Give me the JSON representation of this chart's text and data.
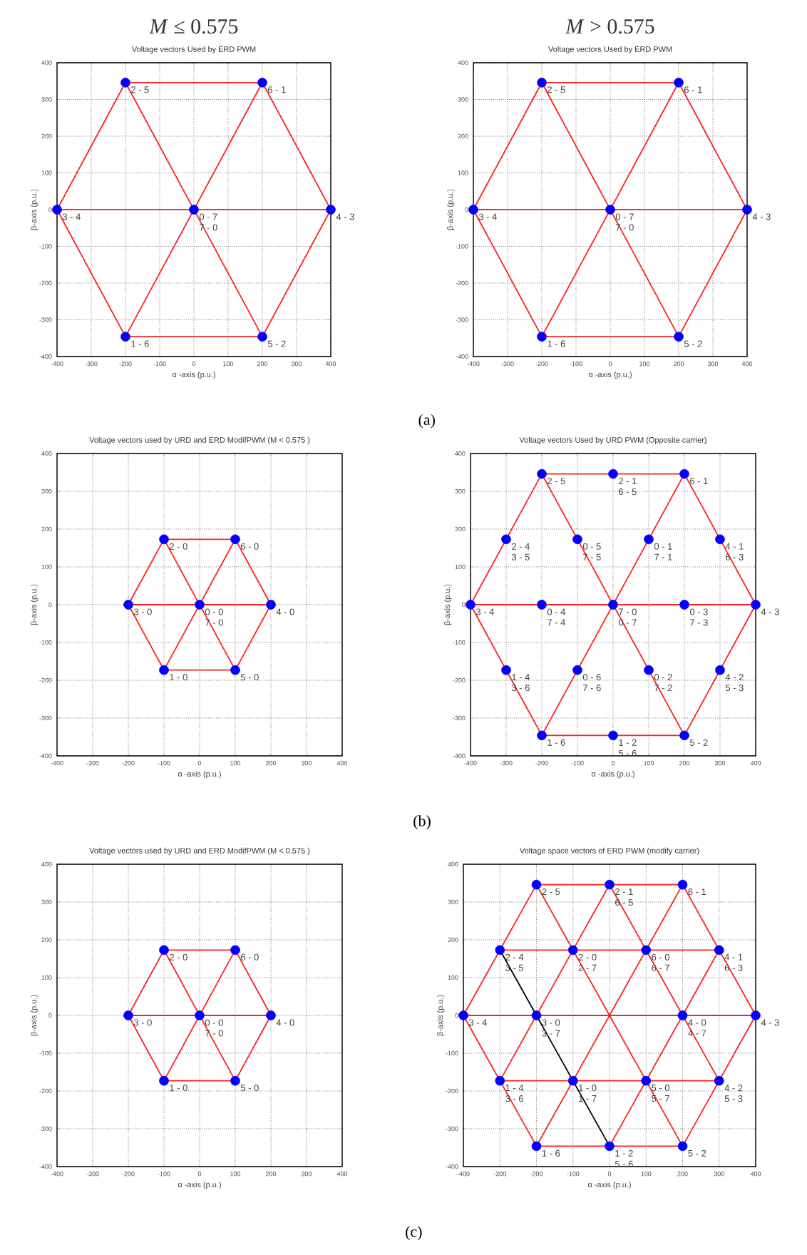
{
  "chart_data": [
    {
      "type": "scatter",
      "title": "*M* ≤ 0.575",
      "subtitle": "Voltage vectors Used by ERD PWM",
      "xlabel": "α -axis (p.u.)",
      "ylabel": "β-axis (p.u.)",
      "xlim": [
        -400,
        400
      ],
      "ylim": [
        -400,
        400
      ],
      "xticks": [
        -400,
        -300,
        -200,
        -100,
        0,
        100,
        200,
        300,
        400
      ],
      "yticks": [
        -400,
        -300,
        -200,
        -100,
        0,
        100,
        200,
        300,
        400
      ],
      "grid": true,
      "series": [
        {
          "type": "line",
          "color": "#ff2020",
          "x": [
            -400,
            -200,
            200,
            400
          ],
          "values": [
            0,
            346,
            346,
            0
          ]
        },
        {
          "type": "line",
          "color": "#ff2020",
          "x": [
            -400,
            -200,
            200,
            400
          ],
          "values": [
            0,
            -346,
            -346,
            0
          ]
        },
        {
          "type": "line",
          "color": "#ff2020",
          "x": [
            -400,
            400
          ],
          "values": [
            0,
            0
          ]
        },
        {
          "type": "line",
          "color": "#ff2020",
          "x": [
            -200,
            200
          ],
          "values": [
            346,
            -346
          ]
        },
        {
          "type": "line",
          "color": "#ff2020",
          "x": [
            -200,
            200
          ],
          "values": [
            -346,
            346
          ]
        },
        {
          "marker": "circle",
          "color": "#0000ff",
          "x": [
            -400,
            -200,
            200,
            400,
            200,
            -200,
            0
          ],
          "values": [
            0,
            346,
            346,
            0,
            -346,
            -346,
            0
          ]
        }
      ],
      "annotations": [
        {
          "text": "2 - 5",
          "x": -200,
          "y": 346
        },
        {
          "text": "6 - 1",
          "x": 200,
          "y": 346
        },
        {
          "text": "3 - 4",
          "x": -400,
          "y": 0
        },
        {
          "text": "0 - 7",
          "x": 0,
          "y": 0
        },
        {
          "text": "7 - 0",
          "x": 0,
          "y": 0
        },
        {
          "text": "4 - 3",
          "x": 400,
          "y": 0
        },
        {
          "text": "1 - 6",
          "x": -200,
          "y": -346
        },
        {
          "text": "5 - 2",
          "x": 200,
          "y": -346
        }
      ]
    },
    {
      "type": "scatter",
      "title": "*M* > 0.575",
      "subtitle": "Voltage vectors Used by ERD PWM",
      "xlabel": "α -axis (p.u.)",
      "ylabel": "β-axis (p.u.)",
      "xlim": [
        -400,
        400
      ],
      "ylim": [
        -400,
        400
      ],
      "xticks": [
        -400,
        -300,
        -200,
        -100,
        0,
        100,
        200,
        300,
        400
      ],
      "yticks": [
        -400,
        -300,
        -200,
        -100,
        0,
        100,
        200,
        300,
        400
      ],
      "grid": true,
      "series": [
        {
          "type": "line",
          "color": "#ff2020",
          "x": [
            -400,
            -200,
            200,
            400
          ],
          "values": [
            0,
            346,
            346,
            0
          ]
        },
        {
          "type": "line",
          "color": "#ff2020",
          "x": [
            -400,
            -200,
            200,
            400
          ],
          "values": [
            0,
            -346,
            -346,
            0
          ]
        },
        {
          "type": "line",
          "color": "#ff2020",
          "x": [
            -400,
            400
          ],
          "values": [
            0,
            0
          ]
        },
        {
          "type": "line",
          "color": "#ff2020",
          "x": [
            -200,
            200
          ],
          "values": [
            346,
            -346
          ]
        },
        {
          "type": "line",
          "color": "#ff2020",
          "x": [
            -200,
            200
          ],
          "values": [
            -346,
            346
          ]
        },
        {
          "marker": "circle",
          "color": "#0000ff",
          "x": [
            -400,
            -200,
            200,
            400,
            200,
            -200,
            0
          ],
          "values": [
            0,
            346,
            346,
            0,
            -346,
            -346,
            0
          ]
        }
      ],
      "annotations": [
        {
          "text": "2 - 5",
          "x": -200,
          "y": 346
        },
        {
          "text": "6 - 1",
          "x": 200,
          "y": 346
        },
        {
          "text": "3 - 4",
          "x": -400,
          "y": 0
        },
        {
          "text": "0 - 7",
          "x": 0,
          "y": 0
        },
        {
          "text": "7 - 0",
          "x": 0,
          "y": 0
        },
        {
          "text": "4 - 3",
          "x": 400,
          "y": 0
        },
        {
          "text": "1 - 6",
          "x": -200,
          "y": -346
        },
        {
          "text": "5 - 2",
          "x": 200,
          "y": -346
        },
        "(a)"
      ]
    },
    {
      "type": "scatter",
      "title": "Voltage vectors used by URD and ERD ModifPWM (M < 0.575 )",
      "xlabel": "α -axis (p.u.)",
      "ylabel": "β-axis (p.u.)",
      "xlim": [
        -400,
        400
      ],
      "ylim": [
        -400,
        400
      ],
      "xticks": [
        -400,
        -300,
        -200,
        -100,
        0,
        100,
        200,
        300,
        400
      ],
      "yticks": [
        -400,
        -300,
        -200,
        -100,
        0,
        100,
        200,
        300,
        400
      ],
      "grid": true,
      "series": [
        {
          "type": "line",
          "color": "#ff2020",
          "x": [
            -200,
            -100,
            100,
            200
          ],
          "values": [
            0,
            173,
            173,
            0
          ]
        },
        {
          "type": "line",
          "color": "#ff2020",
          "x": [
            -200,
            -100,
            100,
            200
          ],
          "values": [
            0,
            -173,
            -173,
            0
          ]
        },
        {
          "type": "line",
          "color": "#ff2020",
          "x": [
            -200,
            200
          ],
          "values": [
            0,
            0
          ]
        },
        {
          "type": "line",
          "color": "#ff2020",
          "x": [
            -100,
            100
          ],
          "values": [
            173,
            -173
          ]
        },
        {
          "type": "line",
          "color": "#ff2020",
          "x": [
            -100,
            100
          ],
          "values": [
            -173,
            173
          ]
        },
        {
          "marker": "circle",
          "color": "#0000ff",
          "x": [
            -200,
            -100,
            100,
            200,
            100,
            -100,
            0
          ],
          "values": [
            0,
            173,
            173,
            0,
            -173,
            -173,
            0
          ]
        }
      ],
      "annotations": [
        {
          "text": "2 - 0",
          "x": -100,
          "y": 173
        },
        {
          "text": "6 - 0",
          "x": 100,
          "y": 173
        },
        {
          "text": "3 - 0",
          "x": -200,
          "y": 0
        },
        {
          "text": "0 - 0",
          "x": 0,
          "y": 0
        },
        {
          "text": "7 - 0",
          "x": 0,
          "y": 0
        },
        {
          "text": "4 - 0",
          "x": 200,
          "y": 0
        },
        {
          "text": "1 - 0",
          "x": -100,
          "y": -173
        },
        {
          "text": "5 - 0",
          "x": 100,
          "y": -173
        }
      ]
    },
    {
      "type": "scatter",
      "title": "Voltage vectors Used by URD PWM (Opposite carrier)",
      "xlabel": "α -axis (p.u.)",
      "ylabel": "β-axis (p.u.)",
      "xlim": [
        -400,
        400
      ],
      "ylim": [
        -400,
        400
      ],
      "xticks": [
        -400,
        -300,
        -200,
        -100,
        0,
        100,
        200,
        300,
        400
      ],
      "yticks": [
        -400,
        -300,
        -200,
        -100,
        0,
        100,
        200,
        300,
        400
      ],
      "grid": true,
      "series": [
        {
          "type": "line",
          "color": "#ff2020",
          "x": [
            -400,
            -200,
            200,
            400
          ],
          "values": [
            0,
            346,
            346,
            0
          ]
        },
        {
          "type": "line",
          "color": "#ff2020",
          "x": [
            -400,
            -200,
            200,
            400
          ],
          "values": [
            0,
            -346,
            -346,
            0
          ]
        },
        {
          "type": "line",
          "color": "#ff2020",
          "x": [
            -400,
            400
          ],
          "values": [
            0,
            0
          ]
        },
        {
          "type": "line",
          "color": "#ff2020",
          "x": [
            -200,
            200
          ],
          "values": [
            346,
            -346
          ]
        },
        {
          "type": "line",
          "color": "#ff2020",
          "x": [
            -200,
            200
          ],
          "values": [
            -346,
            346
          ]
        },
        {
          "marker": "circle",
          "color": "#0000ff",
          "x": [
            -200,
            0,
            200,
            -300,
            -100,
            100,
            300,
            -400,
            -200,
            0,
            200,
            400,
            -300,
            -100,
            100,
            300,
            -200,
            0,
            200
          ],
          "values": [
            346,
            346,
            346,
            173,
            173,
            173,
            173,
            0,
            0,
            0,
            0,
            0,
            -173,
            -173,
            -173,
            -173,
            -346,
            -346,
            -346
          ]
        }
      ],
      "annotations": [
        {
          "text": "2 - 5",
          "x": -200,
          "y": 346
        },
        {
          "text": "2 - 1",
          "x": 0,
          "y": 346
        },
        {
          "text": "6 - 5",
          "x": 0,
          "y": 346
        },
        {
          "text": "6 - 1",
          "x": 200,
          "y": 346
        },
        {
          "text": "2 - 4",
          "x": -300,
          "y": 173
        },
        {
          "text": "3 - 5",
          "x": -300,
          "y": 173
        },
        {
          "text": "0 - 5",
          "x": -100,
          "y": 173
        },
        {
          "text": "7 - 5",
          "x": -100,
          "y": 173
        },
        {
          "text": "0 - 1",
          "x": 100,
          "y": 173
        },
        {
          "text": "7 - 1",
          "x": 100,
          "y": 173
        },
        {
          "text": "4 - 1",
          "x": 300,
          "y": 173
        },
        {
          "text": "6 - 3",
          "x": 300,
          "y": 173
        },
        {
          "text": "3 - 4",
          "x": -400,
          "y": 0
        },
        {
          "text": "0 - 4",
          "x": -200,
          "y": 0
        },
        {
          "text": "7 - 4",
          "x": -200,
          "y": 0
        },
        {
          "text": "7 - 0",
          "x": 0,
          "y": 0
        },
        {
          "text": "0 - 7",
          "x": 0,
          "y": 0
        },
        {
          "text": "0 - 3",
          "x": 200,
          "y": 0
        },
        {
          "text": "7 - 3",
          "x": 200,
          "y": 0
        },
        {
          "text": "4 - 3",
          "x": 400,
          "y": 0
        },
        {
          "text": "1 - 4",
          "x": -300,
          "y": -173
        },
        {
          "text": "3 - 6",
          "x": -300,
          "y": -173
        },
        {
          "text": "0 - 6",
          "x": -100,
          "y": -173
        },
        {
          "text": "7 - 6",
          "x": -100,
          "y": -173
        },
        {
          "text": "0 - 2",
          "x": 100,
          "y": -173
        },
        {
          "text": "7 - 2",
          "x": 100,
          "y": -173
        },
        {
          "text": "4 - 2",
          "x": 300,
          "y": -173
        },
        {
          "text": "5 - 3",
          "x": 300,
          "y": -173
        },
        {
          "text": "1 - 6",
          "x": -200,
          "y": -346
        },
        {
          "text": "1 - 2",
          "x": 0,
          "y": -346
        },
        {
          "text": "5 - 6",
          "x": 0,
          "y": -346
        },
        {
          "text": "5 - 2",
          "x": 200,
          "y": -346
        },
        "(b)"
      ]
    },
    {
      "type": "scatter",
      "title": "Voltage vectors used by URD and ERD ModifPWM (M < 0.575 )",
      "xlabel": "α -axis (p.u.)",
      "ylabel": "β-axis (p.u.)",
      "xlim": [
        -400,
        400
      ],
      "ylim": [
        -400,
        400
      ],
      "xticks": [
        -400,
        -300,
        -200,
        -100,
        0,
        100,
        200,
        300,
        400
      ],
      "yticks": [
        -400,
        -300,
        -200,
        -100,
        0,
        100,
        200,
        300,
        400
      ],
      "grid": true,
      "series": [
        {
          "type": "line",
          "color": "#ff2020",
          "x": [
            -200,
            -100,
            100,
            200
          ],
          "values": [
            0,
            173,
            173,
            0
          ]
        },
        {
          "type": "line",
          "color": "#ff2020",
          "x": [
            -200,
            -100,
            100,
            200
          ],
          "values": [
            0,
            -173,
            -173,
            0
          ]
        },
        {
          "type": "line",
          "color": "#ff2020",
          "x": [
            -200,
            200
          ],
          "values": [
            0,
            0
          ]
        },
        {
          "type": "line",
          "color": "#ff2020",
          "x": [
            -100,
            100
          ],
          "values": [
            173,
            -173
          ]
        },
        {
          "type": "line",
          "color": "#ff2020",
          "x": [
            -100,
            100
          ],
          "values": [
            -173,
            173
          ]
        },
        {
          "marker": "circle",
          "color": "#0000ff",
          "x": [
            -200,
            -100,
            100,
            200,
            100,
            -100,
            0
          ],
          "values": [
            0,
            173,
            173,
            0,
            -173,
            -173,
            0
          ]
        }
      ],
      "annotations": [
        {
          "text": "2 - 0",
          "x": -100,
          "y": 173
        },
        {
          "text": "6 - 0",
          "x": 100,
          "y": 173
        },
        {
          "text": "3 - 0",
          "x": -200,
          "y": 0
        },
        {
          "text": "0 - 0",
          "x": 0,
          "y": 0
        },
        {
          "text": "7 - 0",
          "x": 0,
          "y": 0
        },
        {
          "text": "4 - 0",
          "x": 200,
          "y": 0
        },
        {
          "text": "1 - 0",
          "x": -100,
          "y": -173
        },
        {
          "text": "5 - 0",
          "x": 100,
          "y": -173
        }
      ]
    },
    {
      "type": "scatter",
      "title": "Voltage space vectors of ERD PWM (modify carrier)",
      "xlabel": "α -axis (p.u.)",
      "ylabel": "β-axis (p.u.)",
      "xlim": [
        -400,
        400
      ],
      "ylim": [
        -400,
        400
      ],
      "xticks": [
        -400,
        -300,
        -200,
        -100,
        0,
        100,
        200,
        300,
        400
      ],
      "yticks": [
        -400,
        -300,
        -200,
        -100,
        0,
        100,
        200,
        300,
        400
      ],
      "grid": true,
      "series": [
        {
          "type": "line",
          "color": "#ff2020",
          "x": [
            -200,
            200
          ],
          "values": [
            346,
            346
          ]
        },
        {
          "type": "line",
          "color": "#ff2020",
          "x": [
            -300,
            300
          ],
          "values": [
            173,
            173
          ]
        },
        {
          "type": "line",
          "color": "#ff2020",
          "x": [
            -400,
            400
          ],
          "values": [
            0,
            0
          ]
        },
        {
          "type": "line",
          "color": "#ff2020",
          "x": [
            -300,
            300
          ],
          "values": [
            -173,
            -173
          ]
        },
        {
          "type": "line",
          "color": "#ff2020",
          "x": [
            -200,
            200
          ],
          "values": [
            -346,
            -346
          ]
        },
        {
          "type": "line",
          "color": "#ff2020",
          "x": [
            -400,
            -200
          ],
          "values": [
            0,
            346
          ]
        },
        {
          "type": "line",
          "color": "#ff2020",
          "x": [
            -300,
            0
          ],
          "values": [
            -173,
            346
          ]
        },
        {
          "type": "line",
          "color": "#ff2020",
          "x": [
            -200,
            200
          ],
          "values": [
            -346,
            346
          ]
        },
        {
          "type": "line",
          "color": "#ff2020",
          "x": [
            0,
            300
          ],
          "values": [
            -346,
            173
          ]
        },
        {
          "type": "line",
          "color": "#ff2020",
          "x": [
            200,
            400
          ],
          "values": [
            -346,
            0
          ]
        },
        {
          "type": "line",
          "color": "#ff2020",
          "x": [
            -400,
            -200
          ],
          "values": [
            0,
            -346
          ]
        },
        {
          "type": "line",
          "color": "#ff2020",
          "x": [
            -200,
            200
          ],
          "values": [
            346,
            -346
          ]
        },
        {
          "type": "line",
          "color": "#ff2020",
          "x": [
            0,
            300
          ],
          "values": [
            346,
            -173
          ]
        },
        {
          "type": "line",
          "color": "#ff2020",
          "x": [
            200,
            400
          ],
          "values": [
            346,
            0
          ]
        },
        {
          "type": "line",
          "color": "#000000",
          "x": [
            -300,
            0
          ],
          "values": [
            173,
            -346
          ]
        },
        {
          "marker": "circle",
          "color": "#0000ff",
          "x": [
            -200,
            0,
            200,
            -300,
            -100,
            100,
            300,
            -400,
            -200,
            200,
            400,
            -300,
            -100,
            100,
            300,
            -200,
            0,
            200
          ],
          "values": [
            346,
            346,
            346,
            173,
            173,
            173,
            173,
            0,
            0,
            0,
            0,
            -173,
            -173,
            -173,
            -173,
            -346,
            -346,
            -346
          ]
        }
      ],
      "annotations": [
        {
          "text": "2 - 5",
          "x": -200,
          "y": 346
        },
        {
          "text": "2 - 1",
          "x": 0,
          "y": 346
        },
        {
          "text": "6 - 5",
          "x": 0,
          "y": 346
        },
        {
          "text": "6 - 1",
          "x": 200,
          "y": 346
        },
        {
          "text": "2 - 4",
          "x": -300,
          "y": 173
        },
        {
          "text": "3 - 5",
          "x": -300,
          "y": 173
        },
        {
          "text": "2 - 0",
          "x": -100,
          "y": 173
        },
        {
          "text": "2 - 7",
          "x": -100,
          "y": 173
        },
        {
          "text": "6 - 0",
          "x": 100,
          "y": 173
        },
        {
          "text": "6 - 7",
          "x": 100,
          "y": 173
        },
        {
          "text": "4 - 1",
          "x": 300,
          "y": 173
        },
        {
          "text": "6 - 3",
          "x": 300,
          "y": 173
        },
        {
          "text": "3 - 4",
          "x": -400,
          "y": 0
        },
        {
          "text": "3 - 0",
          "x": -200,
          "y": 0
        },
        {
          "text": "3 - 7",
          "x": -200,
          "y": 0
        },
        {
          "text": "4 - 0",
          "x": 200,
          "y": 0
        },
        {
          "text": "4 - 7",
          "x": 200,
          "y": 0
        },
        {
          "text": "4 - 3",
          "x": 400,
          "y": 0
        },
        {
          "text": "1 - 4",
          "x": -300,
          "y": -173
        },
        {
          "text": "3 - 6",
          "x": -300,
          "y": -173
        },
        {
          "text": "1 - 0",
          "x": -100,
          "y": -173
        },
        {
          "text": "1 - 7",
          "x": -100,
          "y": -173
        },
        {
          "text": "5 - 0",
          "x": 100,
          "y": -173
        },
        {
          "text": "5 - 7",
          "x": 100,
          "y": -173
        },
        {
          "text": "4 - 2",
          "x": 300,
          "y": -173
        },
        {
          "text": "5 - 3",
          "x": 300,
          "y": -173
        },
        {
          "text": "1 - 6",
          "x": -200,
          "y": -346
        },
        {
          "text": "1 - 2",
          "x": 0,
          "y": -346
        },
        {
          "text": "5 - 6",
          "x": 0,
          "y": -346
        },
        {
          "text": "5 - 2",
          "x": 200,
          "y": -346
        },
        "(c)"
      ]
    }
  ]
}
